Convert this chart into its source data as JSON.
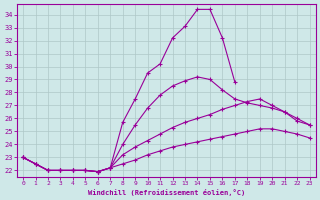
{
  "xlabel": "Windchill (Refroidissement éolien,°C)",
  "xlim": [
    -0.5,
    23.5
  ],
  "ylim": [
    21.5,
    34.8
  ],
  "yticks": [
    22,
    23,
    24,
    25,
    26,
    27,
    28,
    29,
    30,
    31,
    32,
    33,
    34
  ],
  "xticks": [
    0,
    1,
    2,
    3,
    4,
    5,
    6,
    7,
    8,
    9,
    10,
    11,
    12,
    13,
    14,
    15,
    16,
    17,
    18,
    19,
    20,
    21,
    22,
    23
  ],
  "background_color": "#cfe8e8",
  "line_color": "#990099",
  "grid_color": "#aec8c8",
  "line1_x": [
    0,
    1,
    2,
    3,
    4,
    5,
    6,
    7,
    8,
    9,
    10,
    11,
    12,
    13,
    14,
    15,
    16,
    17
  ],
  "line1_y": [
    23.0,
    22.5,
    22.0,
    22.0,
    22.0,
    22.0,
    21.9,
    22.2,
    25.7,
    27.5,
    29.5,
    30.2,
    32.2,
    33.1,
    34.4,
    34.4,
    32.2,
    28.8
  ],
  "line2_x": [
    0,
    1,
    2,
    3,
    4,
    5,
    6,
    7,
    8,
    9,
    10,
    11,
    12,
    13,
    14,
    15,
    16,
    17,
    18,
    19,
    20,
    21,
    22,
    23
  ],
  "line2_y": [
    23.0,
    22.5,
    22.0,
    22.0,
    22.0,
    22.0,
    21.9,
    22.2,
    24.0,
    25.5,
    26.8,
    27.8,
    28.5,
    28.9,
    29.2,
    29.0,
    28.2,
    27.5,
    27.2,
    27.0,
    26.8,
    26.5,
    25.8,
    25.5
  ],
  "line3_x": [
    0,
    1,
    2,
    3,
    4,
    5,
    6,
    7,
    8,
    9,
    10,
    11,
    12,
    13,
    14,
    15,
    16,
    17,
    18,
    19,
    20,
    21,
    22,
    23
  ],
  "line3_y": [
    23.0,
    22.5,
    22.0,
    22.0,
    22.0,
    22.0,
    21.9,
    22.2,
    23.2,
    23.8,
    24.3,
    24.8,
    25.3,
    25.7,
    26.0,
    26.3,
    26.7,
    27.0,
    27.3,
    27.5,
    27.0,
    26.5,
    26.0,
    25.5
  ],
  "line4_x": [
    0,
    1,
    2,
    3,
    4,
    5,
    6,
    7,
    8,
    9,
    10,
    11,
    12,
    13,
    14,
    15,
    16,
    17,
    18,
    19,
    20,
    21,
    22,
    23
  ],
  "line4_y": [
    23.0,
    22.5,
    22.0,
    22.0,
    22.0,
    22.0,
    21.9,
    22.2,
    22.5,
    22.8,
    23.2,
    23.5,
    23.8,
    24.0,
    24.2,
    24.4,
    24.6,
    24.8,
    25.0,
    25.2,
    25.2,
    25.0,
    24.8,
    24.5
  ]
}
